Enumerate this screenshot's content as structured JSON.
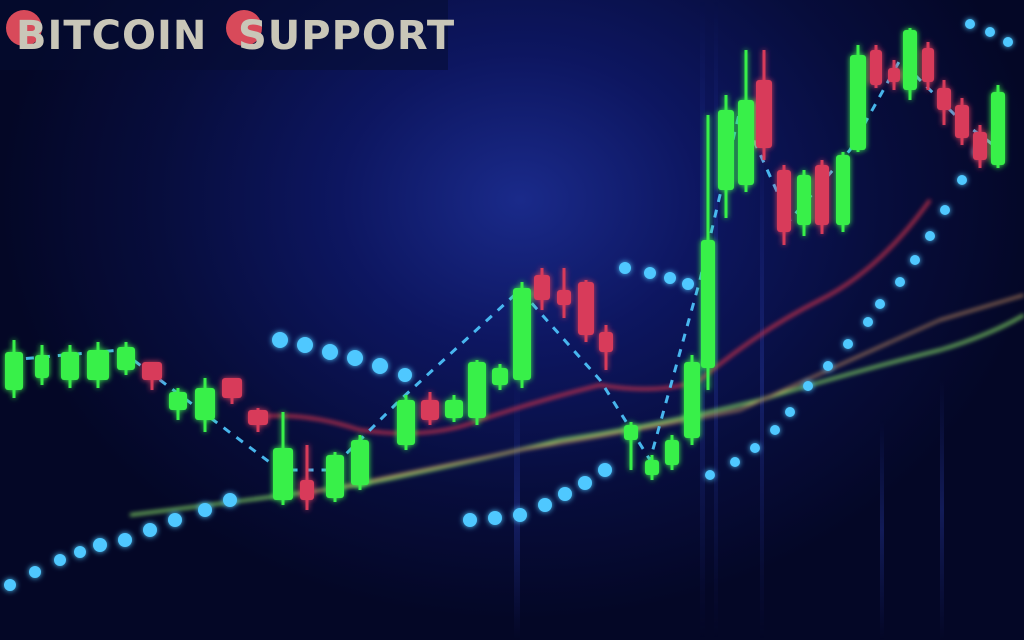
{
  "logo": {
    "word1": "BITCOIN",
    "word2": "SUPPORT",
    "text_color": "#c9c6b8",
    "accent_color": "#d84a5a"
  },
  "scene": {
    "description_type": "candlestick trading chart photo",
    "background_color": "#0d1660",
    "bullish_color": "#39f04a",
    "bearish_color": "#d83a5a",
    "dot_color": "#4fc8ff",
    "ma_red_color": "#c8304a",
    "ma_green_color": "#7ac860",
    "ma_orange_color": "#c89060"
  }
}
